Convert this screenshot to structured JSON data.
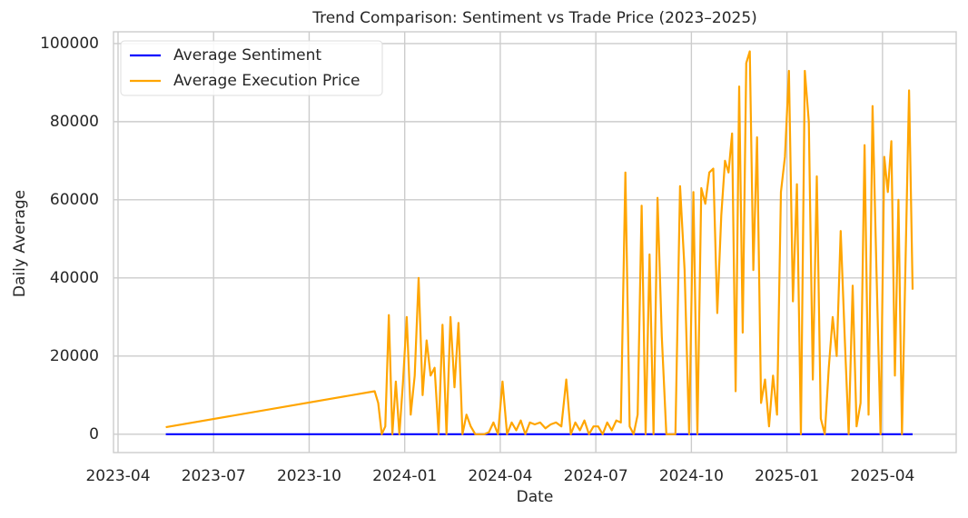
{
  "chart_data": {
    "type": "line",
    "title": "Trend Comparison: Sentiment vs Trade Price (2023–2025)",
    "x_label": "Date",
    "y_label": "Daily Average",
    "x": [
      "2023-05",
      "2023-12",
      "2023-12",
      "2023-12",
      "2023-12",
      "2023-12",
      "2023-12",
      "2023-12",
      "2023-12",
      "2023-12",
      "2024-01",
      "2024-01",
      "2024-01",
      "2024-01",
      "2024-01",
      "2024-01",
      "2024-01",
      "2024-01",
      "2024-02",
      "2024-02",
      "2024-02",
      "2024-02",
      "2024-02",
      "2024-02",
      "2024-02",
      "2024-02",
      "2024-03",
      "2024-03",
      "2024-03",
      "2024-03",
      "2024-03",
      "2024-03",
      "2024-03",
      "2024-04",
      "2024-04",
      "2024-04",
      "2024-04",
      "2024-04",
      "2024-04",
      "2024-04",
      "2024-05",
      "2024-05",
      "2024-05",
      "2024-05",
      "2024-05",
      "2024-05",
      "2024-06",
      "2024-06",
      "2024-06",
      "2024-06",
      "2024-06",
      "2024-06",
      "2024-06",
      "2024-07",
      "2024-07",
      "2024-07",
      "2024-07",
      "2024-07",
      "2024-07",
      "2024-07",
      "2024-08",
      "2024-08",
      "2024-08",
      "2024-08",
      "2024-08",
      "2024-08",
      "2024-08",
      "2024-08",
      "2024-09",
      "2024-09",
      "2024-09",
      "2024-09",
      "2024-09",
      "2024-09",
      "2024-09",
      "2024-10",
      "2024-10",
      "2024-10",
      "2024-10",
      "2024-10",
      "2024-10",
      "2024-10",
      "2024-10",
      "2024-11",
      "2024-11",
      "2024-11",
      "2024-11",
      "2024-11",
      "2024-11",
      "2024-11",
      "2024-11",
      "2024-11",
      "2024-12",
      "2024-12",
      "2024-12",
      "2024-12",
      "2024-12",
      "2024-12",
      "2024-12",
      "2024-12",
      "2025-01",
      "2025-01",
      "2025-01",
      "2025-01",
      "2025-01",
      "2025-01",
      "2025-01",
      "2025-01",
      "2025-02",
      "2025-02",
      "2025-02",
      "2025-02",
      "2025-02",
      "2025-02",
      "2025-02",
      "2025-02",
      "2025-03",
      "2025-03",
      "2025-03",
      "2025-03",
      "2025-03",
      "2025-03",
      "2025-03",
      "2025-03",
      "2025-04",
      "2025-04",
      "2025-04",
      "2025-04",
      "2025-04",
      "2025-04",
      "2025-04",
      "2025-04",
      "2025-04"
    ],
    "series": [
      {
        "name": "Average Sentiment",
        "color": "#0000ff",
        "values": [
          0,
          0,
          0,
          0,
          0,
          0,
          0,
          0,
          0,
          0,
          0,
          0,
          0,
          0,
          0,
          0,
          0,
          0,
          0,
          0,
          0,
          0,
          0,
          0,
          0,
          0,
          0,
          0,
          0,
          0,
          0,
          0,
          0,
          0,
          0,
          0,
          0,
          0,
          0,
          0,
          0,
          0,
          0,
          0,
          0,
          0,
          0,
          0,
          0,
          0,
          0,
          0,
          0,
          0,
          0,
          0,
          0,
          0,
          0,
          0,
          0,
          0,
          0,
          0,
          0,
          0,
          0,
          0,
          0,
          0,
          0,
          0,
          0,
          0,
          0,
          0,
          0,
          0,
          0,
          0,
          0,
          0,
          0,
          0,
          0,
          0,
          0,
          0,
          0,
          0,
          0,
          0,
          0,
          0,
          0,
          0,
          0,
          0,
          0,
          0,
          0,
          0,
          0,
          0,
          0,
          0,
          0,
          0,
          0,
          0,
          0,
          0,
          0,
          0,
          0,
          0,
          0,
          0,
          0,
          0,
          0,
          0,
          0,
          0,
          0,
          0,
          0,
          0,
          0,
          0,
          0,
          0,
          0
        ]
      },
      {
        "name": "Average Execution Price",
        "color": "#ffa500",
        "values": [
          1800,
          11000,
          8000,
          0,
          2000,
          30500,
          0,
          13500,
          0,
          13000,
          30000,
          5000,
          15000,
          40000,
          10000,
          24000,
          15000,
          17000,
          0,
          28000,
          0,
          30000,
          12000,
          28500,
          0,
          5000,
          2000,
          0,
          0,
          0,
          500,
          3000,
          0,
          13500,
          0,
          3000,
          1000,
          3500,
          0,
          3000,
          2500,
          3000,
          1500,
          2500,
          3000,
          2000,
          14000,
          0,
          3000,
          1000,
          3500,
          0,
          2000,
          2000,
          0,
          3000,
          1000,
          3500,
          3000,
          67000,
          2000,
          0,
          5000,
          58500,
          0,
          46000,
          0,
          60500,
          25000,
          0,
          0,
          0,
          63500,
          42000,
          0,
          62000,
          0,
          63000,
          59000,
          67000,
          68000,
          31000,
          56000,
          70000,
          67000,
          77000,
          11000,
          89000,
          26000,
          95000,
          98000,
          42000,
          76000,
          8000,
          14000,
          2000,
          15000,
          5000,
          62000,
          71000,
          93000,
          34000,
          64000,
          0,
          93000,
          80000,
          14000,
          66000,
          4000,
          0,
          17000,
          30000,
          20000,
          52000,
          25000,
          0,
          38000,
          2000,
          8000,
          74000,
          5000,
          84000,
          41000,
          0,
          71000,
          62000,
          75000,
          15000,
          60000,
          0,
          44000,
          88000,
          37000
        ]
      }
    ],
    "xlim": [
      "2023-04",
      "2025-06"
    ],
    "xticks": [
      "2023-04",
      "2023-07",
      "2023-10",
      "2024-01",
      "2024-04",
      "2024-07",
      "2024-10",
      "2025-01",
      "2025-04"
    ],
    "ylim": [
      -4700,
      103000
    ],
    "yticks": [
      0,
      20000,
      40000,
      60000,
      80000,
      100000
    ],
    "grid": true,
    "legend": "upper-left"
  }
}
